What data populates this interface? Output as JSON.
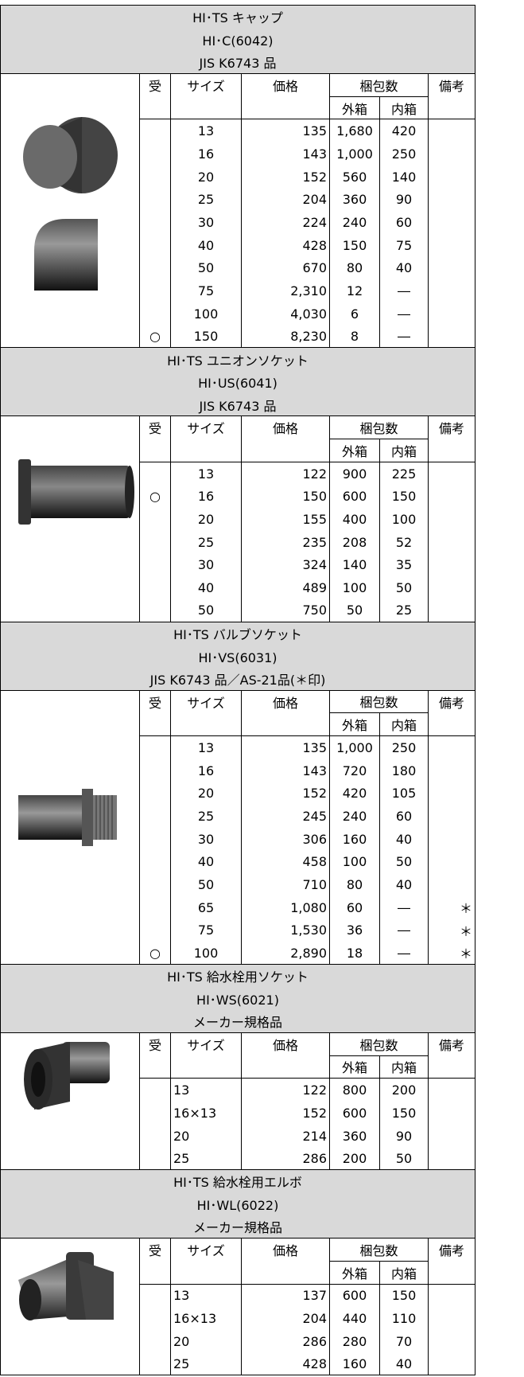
{
  "headers": {
    "uke": "受",
    "size": "サイズ",
    "price": "価格",
    "packing": "梱包数",
    "outer": "外箱",
    "inner": "内箱",
    "remarks": "備考"
  },
  "sections": [
    {
      "title": "HI･TS キャップ",
      "code": "HI･C(6042)",
      "standard": "JIS K6743 品",
      "rows": [
        {
          "size": "13",
          "price": "135",
          "outer": "1,680",
          "inner": "420"
        },
        {
          "size": "16",
          "price": "143",
          "outer": "1,000",
          "inner": "250"
        },
        {
          "size": "20",
          "price": "152",
          "outer": "560",
          "inner": "140"
        },
        {
          "size": "25",
          "price": "204",
          "outer": "360",
          "inner": "90"
        },
        {
          "size": "30",
          "price": "224",
          "outer": "240",
          "inner": "60"
        },
        {
          "size": "40",
          "price": "428",
          "outer": "150",
          "inner": "75"
        },
        {
          "size": "50",
          "price": "670",
          "outer": "80",
          "inner": "40"
        },
        {
          "size": "75",
          "price": "2,310",
          "outer": "12",
          "inner": "―"
        },
        {
          "size": "100",
          "price": "4,030",
          "outer": "6",
          "inner": "―"
        },
        {
          "mark": "○",
          "size": "150",
          "price": "8,230",
          "outer": "8",
          "inner": "―"
        }
      ]
    },
    {
      "title": "HI･TS ユニオンソケット",
      "code": "HI･US(6041)",
      "standard": "JIS K6743 品",
      "rows": [
        {
          "size": "13",
          "price": "122",
          "outer": "900",
          "inner": "225"
        },
        {
          "mark": "○",
          "size": "16",
          "price": "150",
          "outer": "600",
          "inner": "150"
        },
        {
          "size": "20",
          "price": "155",
          "outer": "400",
          "inner": "100"
        },
        {
          "size": "25",
          "price": "235",
          "outer": "208",
          "inner": "52"
        },
        {
          "size": "30",
          "price": "324",
          "outer": "140",
          "inner": "35"
        },
        {
          "size": "40",
          "price": "489",
          "outer": "100",
          "inner": "50"
        },
        {
          "size": "50",
          "price": "750",
          "outer": "50",
          "inner": "25"
        }
      ]
    },
    {
      "title": "HI･TS バルブソケット",
      "code": "HI･VS(6031)",
      "standard": "JIS K6743 品／AS-21品(＊印)",
      "rows": [
        {
          "size": "13",
          "price": "135",
          "outer": "1,000",
          "inner": "250"
        },
        {
          "size": "16",
          "price": "143",
          "outer": "720",
          "inner": "180"
        },
        {
          "size": "20",
          "price": "152",
          "outer": "420",
          "inner": "105"
        },
        {
          "size": "25",
          "price": "245",
          "outer": "240",
          "inner": "60"
        },
        {
          "size": "30",
          "price": "306",
          "outer": "160",
          "inner": "40"
        },
        {
          "size": "40",
          "price": "458",
          "outer": "100",
          "inner": "50"
        },
        {
          "size": "50",
          "price": "710",
          "outer": "80",
          "inner": "40"
        },
        {
          "size": "65",
          "price": "1,080",
          "outer": "60",
          "inner": "―",
          "note": "＊"
        },
        {
          "size": "75",
          "price": "1,530",
          "outer": "36",
          "inner": "―",
          "note": "＊"
        },
        {
          "mark": "○",
          "size": "100",
          "price": "2,890",
          "outer": "18",
          "inner": "―",
          "note": "＊"
        }
      ]
    },
    {
      "title": "HI･TS 給水栓用ソケット",
      "code": "HI･WS(6021)",
      "standard": "メーカー規格品",
      "rows": [
        {
          "size": "13",
          "price": "122",
          "outer": "800",
          "inner": "200"
        },
        {
          "size": "16×13",
          "price": "152",
          "outer": "600",
          "inner": "150"
        },
        {
          "size": "20",
          "price": "214",
          "outer": "360",
          "inner": "90"
        },
        {
          "size": "25",
          "price": "286",
          "outer": "200",
          "inner": "50"
        }
      ]
    },
    {
      "title": "HI･TS 給水栓用エルボ",
      "code": "HI･WL(6022)",
      "standard": "メーカー規格品",
      "rows": [
        {
          "size": "13",
          "price": "137",
          "outer": "600",
          "inner": "150"
        },
        {
          "size": "16×13",
          "price": "204",
          "outer": "440",
          "inner": "110"
        },
        {
          "size": "20",
          "price": "286",
          "outer": "280",
          "inner": "70"
        },
        {
          "size": "25",
          "price": "428",
          "outer": "160",
          "inner": "40"
        }
      ]
    }
  ]
}
